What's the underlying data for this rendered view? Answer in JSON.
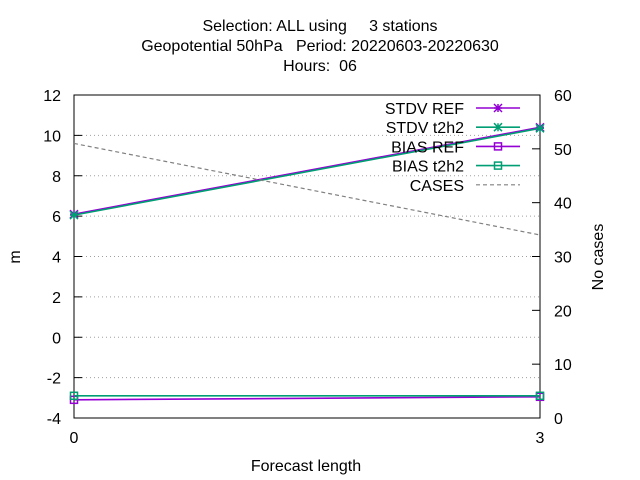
{
  "title": {
    "line1": "Selection: ALL using     3 stations",
    "line2": "Geopotential 50hPa   Period: 20220603-20220630",
    "line3": "Hours:  06"
  },
  "chart_data": {
    "type": "line",
    "xlabel": "Forecast length",
    "ylabel": "m",
    "y2label": "No cases",
    "x": [
      0,
      3
    ],
    "xlim": [
      0,
      3
    ],
    "xticks": [
      0,
      3
    ],
    "ylim": [
      -4,
      12
    ],
    "yticks": [
      -4,
      -2,
      0,
      2,
      4,
      6,
      8,
      10,
      12
    ],
    "y2lim": [
      0,
      60
    ],
    "y2ticks": [
      0,
      10,
      20,
      30,
      40,
      50,
      60
    ],
    "grid": true,
    "legend_position": "top-right",
    "series": [
      {
        "name": "STDV REF",
        "axis": "y1",
        "values": [
          6.1,
          10.4
        ],
        "color": "#9400d3",
        "marker": "star",
        "dash": "solid"
      },
      {
        "name": "STDV t2h2",
        "axis": "y1",
        "values": [
          6.05,
          10.35
        ],
        "color": "#009e73",
        "marker": "star",
        "dash": "solid"
      },
      {
        "name": "BIAS REF",
        "axis": "y1",
        "values": [
          -3.1,
          -2.95
        ],
        "color": "#9400d3",
        "marker": "square",
        "dash": "solid"
      },
      {
        "name": "BIAS t2h2",
        "axis": "y1",
        "values": [
          -2.9,
          -2.9
        ],
        "color": "#009e73",
        "marker": "square",
        "dash": "solid"
      },
      {
        "name": "CASES",
        "axis": "y2",
        "values": [
          51,
          34
        ],
        "color": "#808080",
        "marker": "none",
        "dash": "dashed"
      }
    ]
  }
}
